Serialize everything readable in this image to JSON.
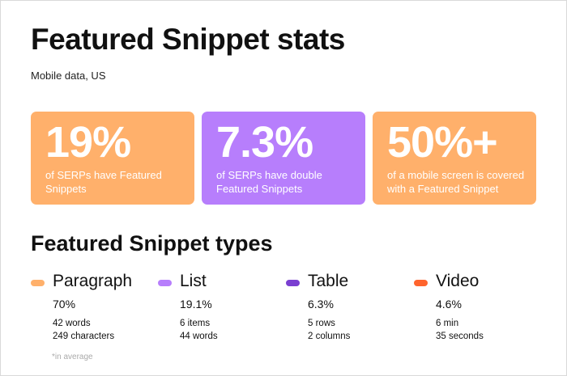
{
  "header": {
    "title": "Featured Snippet stats",
    "subtitle": "Mobile data, US"
  },
  "cards": [
    {
      "value": "19%",
      "description": "of SERPs have Featured Snippets",
      "color": "#ffb06b"
    },
    {
      "value": "7.3%",
      "description": "of SERPs have double Featured Snippets",
      "color": "#b77efc"
    },
    {
      "value": "50%+",
      "description": "of a mobile screen is covered with a Featured Snippet",
      "color": "#ffb06b"
    }
  ],
  "types": {
    "title": "Featured Snippet types",
    "items": [
      {
        "name": "Paragraph",
        "percent": "70%",
        "detail1": "42 words",
        "detail2": "249 characters",
        "color": "#ffb06b"
      },
      {
        "name": "List",
        "percent": "19.1%",
        "detail1": "6 items",
        "detail2": "44 words",
        "color": "#b77efc"
      },
      {
        "name": "Table",
        "percent": "6.3%",
        "detail1": "5 rows",
        "detail2": "2 columns",
        "color": "#7a3fd1"
      },
      {
        "name": "Video",
        "percent": "4.6%",
        "detail1": "6 min",
        "detail2": "35 seconds",
        "color": "#ff642d"
      }
    ],
    "note": "*in average"
  }
}
